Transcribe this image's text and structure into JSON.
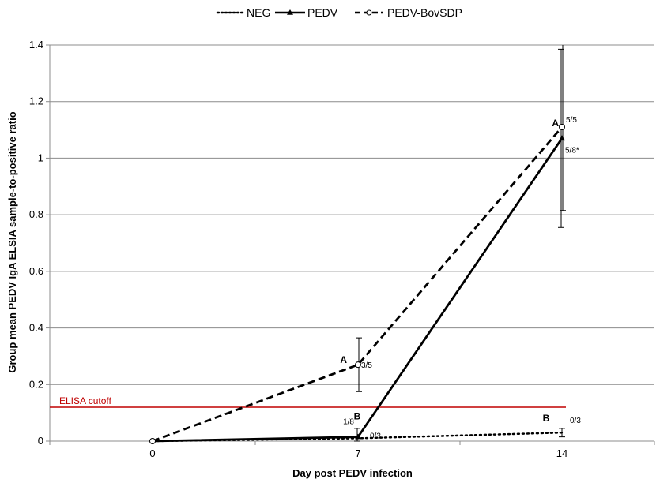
{
  "chart_data": {
    "type": "line",
    "title": "",
    "xlabel": "Day post PEDV infection",
    "ylabel": "Group mean PEDV IgA ELSIA sample-to-positive ratio",
    "x": [
      0,
      7,
      14
    ],
    "x_tick_labels": [
      "0",
      "7",
      "14"
    ],
    "ylim": [
      0,
      1.4
    ],
    "y_ticks": [
      0,
      0.2,
      0.4,
      0.6,
      0.8,
      1,
      1.2,
      1.4
    ],
    "y_tick_labels": [
      "0",
      "0.2",
      "0.4",
      "0.6",
      "0.8",
      "1",
      "1.2",
      "1.4"
    ],
    "grid": "horizontal",
    "legend_position": "top",
    "series": [
      {
        "name": "NEG",
        "style": "dotted",
        "marker": "none",
        "color": "#000000",
        "values": [
          0,
          0.01,
          0.03
        ],
        "error": [
          null,
          null,
          0.015
        ]
      },
      {
        "name": "PEDV",
        "style": "solid",
        "marker": "triangle",
        "color": "#000000",
        "values": [
          0,
          0.015,
          1.07
        ],
        "error": [
          null,
          0.03,
          0.315
        ]
      },
      {
        "name": "PEDV-BovSDP",
        "style": "dashed",
        "marker": "open-circle",
        "color": "#000000",
        "values": [
          0,
          0.27,
          1.11
        ],
        "error": [
          null,
          0.095,
          0.295
        ]
      }
    ],
    "reference_line": {
      "label": "ELISA cutoff",
      "value": 0.12,
      "color": "#c00000"
    },
    "annotations": [
      {
        "text": "A",
        "x": 7,
        "y": 0.27,
        "kind": "group"
      },
      {
        "text": "3/5",
        "x": 7,
        "y": 0.27,
        "kind": "ratio"
      },
      {
        "text": "B",
        "x": 7,
        "y": 0.015,
        "kind": "group"
      },
      {
        "text": "1/8",
        "x": 7,
        "y": 0.015,
        "kind": "ratio"
      },
      {
        "text": "0/3",
        "x": 7,
        "y": 0.01,
        "kind": "ratio"
      },
      {
        "text": "A",
        "x": 14,
        "y": 1.11,
        "kind": "group"
      },
      {
        "text": "5/5",
        "x": 14,
        "y": 1.11,
        "kind": "ratio"
      },
      {
        "text": "5/8*",
        "x": 14,
        "y": 1.07,
        "kind": "ratio"
      },
      {
        "text": "B",
        "x": 14,
        "y": 0.03,
        "kind": "group"
      },
      {
        "text": "0/3",
        "x": 14,
        "y": 0.03,
        "kind": "ratio"
      }
    ]
  }
}
